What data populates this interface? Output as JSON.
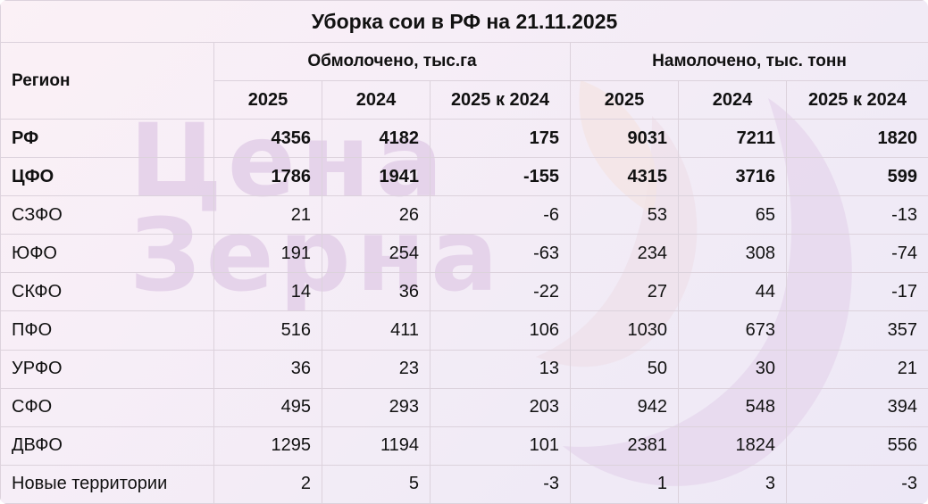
{
  "title": "Уборка сои в РФ на 21.11.2025",
  "header": {
    "region": "Регион",
    "groups": [
      "Обмолочено, тыс.га",
      "Намолочено, тыс. тонн"
    ],
    "subcols": [
      "2025",
      "2024",
      "2025 к 2024",
      "2025",
      "2024",
      "2025 к 2024"
    ]
  },
  "rows": [
    {
      "name": "РФ",
      "bold": true,
      "values": [
        "4356",
        "4182",
        "175",
        "9031",
        "7211",
        "1820"
      ]
    },
    {
      "name": "ЦФО",
      "bold": true,
      "values": [
        "1786",
        "1941",
        "-155",
        "4315",
        "3716",
        "599"
      ]
    },
    {
      "name": "СЗФО",
      "bold": false,
      "values": [
        "21",
        "26",
        "-6",
        "53",
        "65",
        "-13"
      ]
    },
    {
      "name": "ЮФО",
      "bold": false,
      "values": [
        "191",
        "254",
        "-63",
        "234",
        "308",
        "-74"
      ]
    },
    {
      "name": "СКФО",
      "bold": false,
      "values": [
        "14",
        "36",
        "-22",
        "27",
        "44",
        "-17"
      ]
    },
    {
      "name": "ПФО",
      "bold": false,
      "values": [
        "516",
        "411",
        "106",
        "1030",
        "673",
        "357"
      ]
    },
    {
      "name": "УРФО",
      "bold": false,
      "values": [
        "36",
        "23",
        "13",
        "50",
        "30",
        "21"
      ]
    },
    {
      "name": "СФО",
      "bold": false,
      "values": [
        "495",
        "293",
        "203",
        "942",
        "548",
        "394"
      ]
    },
    {
      "name": "ДВФО",
      "bold": false,
      "values": [
        "1295",
        "1194",
        "101",
        "2381",
        "1824",
        "556"
      ]
    },
    {
      "name": "Новые территории",
      "bold": false,
      "values": [
        "2",
        "5",
        "-3",
        "1",
        "3",
        "-3"
      ]
    }
  ],
  "watermark": {
    "line1": "Цена",
    "line2": "Зерна"
  },
  "colors": {
    "border": "#dcd2dc",
    "watermark": "#e3cfe8",
    "text": "#111111"
  }
}
